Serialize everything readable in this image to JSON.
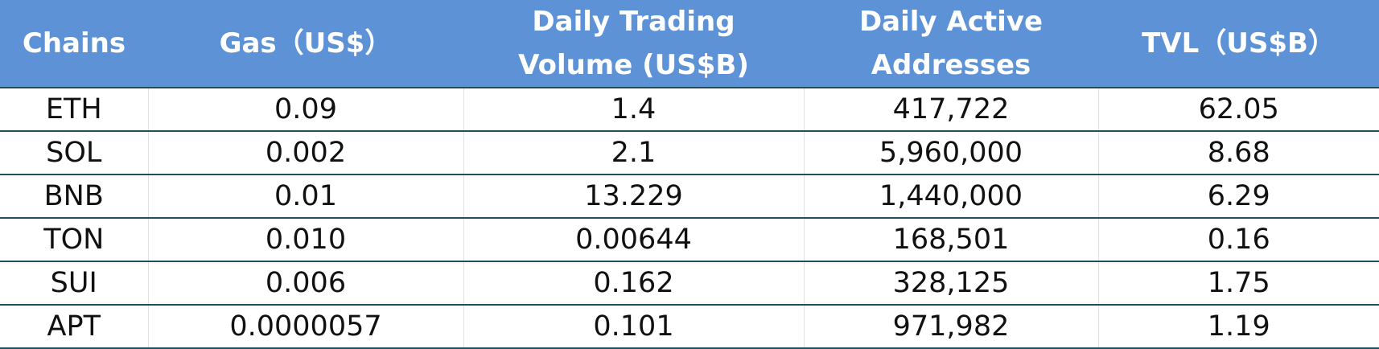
{
  "table": {
    "header": [
      "Chains",
      "Gas（US$）",
      "Daily Trading Volume (US$B)",
      "Daily Active Addresses",
      "TVL（US$B）"
    ],
    "rows": [
      [
        "ETH",
        "0.09",
        "1.4",
        "417,722",
        "62.05"
      ],
      [
        "SOL",
        "0.002",
        "2.1",
        "5,960,000",
        "8.68"
      ],
      [
        "BNB",
        "0.01",
        "13.229",
        "1,440,000",
        "6.29"
      ],
      [
        "TON",
        "0.010",
        "0.00644",
        "168,501",
        "0.16"
      ],
      [
        "SUI",
        "0.006",
        "0.162",
        "328,125",
        "1.75"
      ],
      [
        "APT",
        "0.0000057",
        "0.101",
        "971,982",
        "1.19"
      ]
    ]
  }
}
